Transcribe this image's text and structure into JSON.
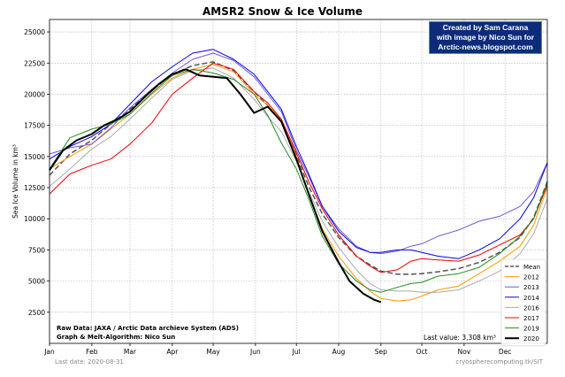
{
  "chart_data": {
    "type": "line",
    "title": "AMSR2 Snow & Ice Volume",
    "ylabel": "Sea Ice Volume in km³",
    "xlabel": "",
    "ylim": [
      0,
      26000
    ],
    "xlim": [
      0,
      365
    ],
    "y_ticks": [
      2500,
      5000,
      7500,
      10000,
      12500,
      15000,
      17500,
      20000,
      22500,
      25000
    ],
    "y_tick_labels": [
      "2500",
      "5000",
      "7500",
      "10000",
      "12500",
      "15000",
      "17500",
      "20000",
      "22500",
      "25000"
    ],
    "month_labels": [
      "Jan",
      "Feb",
      "Mar",
      "Apr",
      "May",
      "Jun",
      "Jul",
      "Aug",
      "Sep",
      "Oct",
      "Nov",
      "Dec"
    ],
    "month_starts": [
      0,
      31,
      59,
      90,
      120,
      151,
      181,
      212,
      243,
      273,
      304,
      334
    ],
    "grid": true,
    "legend_position": "bottom-right",
    "series": [
      {
        "name": "Mean",
        "color": "#555555",
        "dash": true,
        "width": 1.5,
        "x": [
          0,
          15,
          31,
          45,
          59,
          75,
          90,
          105,
          120,
          135,
          150,
          160,
          170,
          181,
          190,
          200,
          212,
          225,
          235,
          243,
          255,
          265,
          273,
          285,
          300,
          315,
          330,
          345,
          355,
          365
        ],
        "y": [
          13500,
          15200,
          16300,
          17600,
          18800,
          20300,
          21600,
          22300,
          22600,
          21900,
          20200,
          19100,
          17900,
          15100,
          12600,
          10400,
          8500,
          7000,
          6300,
          5800,
          5550,
          5550,
          5600,
          5750,
          6000,
          6500,
          7300,
          8500,
          10100,
          13000
        ]
      },
      {
        "name": "2012",
        "color": "#ff9900",
        "dash": false,
        "width": 1,
        "x": [
          0,
          15,
          31,
          45,
          59,
          75,
          90,
          105,
          120,
          135,
          150,
          160,
          170,
          181,
          190,
          200,
          212,
          225,
          235,
          243,
          255,
          265,
          273,
          285,
          300,
          315,
          330,
          345,
          355,
          365
        ],
        "y": [
          14000,
          15000,
          16000,
          17200,
          18400,
          20000,
          21300,
          22000,
          22400,
          21800,
          20000,
          19100,
          18000,
          15000,
          12000,
          9200,
          7000,
          5200,
          4200,
          3600,
          3400,
          3500,
          3800,
          4300,
          4600,
          5600,
          6600,
          7800,
          9500,
          12500
        ]
      },
      {
        "name": "2013",
        "color": "#7755cc",
        "dash": false,
        "width": 1,
        "x": [
          0,
          15,
          31,
          45,
          59,
          75,
          90,
          105,
          120,
          135,
          150,
          160,
          170,
          181,
          190,
          200,
          212,
          225,
          235,
          243,
          255,
          265,
          273,
          285,
          300,
          315,
          330,
          345,
          355,
          365
        ],
        "y": [
          15200,
          15700,
          16000,
          17300,
          18900,
          20400,
          21700,
          22800,
          23300,
          22700,
          21400,
          20000,
          18600,
          15500,
          13400,
          11000,
          9200,
          7800,
          7300,
          7200,
          7400,
          7800,
          8000,
          8600,
          9100,
          9800,
          10200,
          11000,
          12200,
          14500
        ]
      },
      {
        "name": "2014",
        "color": "#0000ee",
        "dash": false,
        "width": 1,
        "x": [
          0,
          15,
          31,
          45,
          59,
          75,
          90,
          105,
          120,
          135,
          150,
          160,
          170,
          181,
          190,
          200,
          212,
          225,
          235,
          243,
          255,
          265,
          273,
          285,
          300,
          315,
          330,
          345,
          355,
          365
        ],
        "y": [
          14800,
          15800,
          16600,
          17600,
          19200,
          21000,
          22200,
          23300,
          23600,
          22800,
          21600,
          20200,
          18800,
          15800,
          13600,
          11000,
          9000,
          7700,
          7300,
          7300,
          7500,
          7500,
          7300,
          7000,
          6800,
          7500,
          8400,
          10000,
          11700,
          14500
        ]
      },
      {
        "name": "2016",
        "color": "#aaaaaa",
        "dash": false,
        "width": 1,
        "x": [
          0,
          15,
          31,
          45,
          59,
          75,
          90,
          105,
          120,
          135,
          150,
          160,
          170,
          181,
          190,
          200,
          212,
          225,
          235,
          243,
          255,
          265,
          273,
          285,
          300,
          315,
          330,
          345,
          355,
          365
        ],
        "y": [
          12600,
          14000,
          15600,
          16600,
          18000,
          19700,
          21200,
          21900,
          22100,
          21300,
          19600,
          18200,
          17000,
          14600,
          12200,
          9800,
          7700,
          5900,
          4800,
          4300,
          4200,
          4200,
          4100,
          4100,
          4300,
          5000,
          5800,
          7200,
          8800,
          11600
        ]
      },
      {
        "name": "2017",
        "color": "#ee0000",
        "dash": false,
        "width": 1,
        "x": [
          0,
          15,
          31,
          45,
          59,
          75,
          90,
          105,
          120,
          135,
          150,
          160,
          170,
          181,
          190,
          200,
          212,
          225,
          235,
          243,
          255,
          265,
          273,
          285,
          300,
          315,
          330,
          345,
          355,
          365
        ],
        "y": [
          12000,
          13600,
          14300,
          14800,
          16000,
          17700,
          20000,
          21300,
          22500,
          22000,
          20200,
          19300,
          18000,
          15300,
          13000,
          10800,
          8700,
          7000,
          6200,
          5700,
          5900,
          6600,
          6800,
          6700,
          6600,
          7100,
          7900,
          8700,
          10000,
          12700
        ]
      },
      {
        "name": "2019",
        "color": "#228b22",
        "dash": false,
        "width": 1,
        "x": [
          0,
          15,
          31,
          45,
          59,
          75,
          90,
          105,
          120,
          135,
          150,
          160,
          170,
          181,
          190,
          200,
          212,
          225,
          235,
          243,
          255,
          265,
          273,
          285,
          300,
          315,
          330,
          345,
          355,
          365
        ],
        "y": [
          14000,
          16500,
          17200,
          17600,
          18400,
          20100,
          21500,
          22000,
          21700,
          21200,
          20000,
          18300,
          16100,
          14000,
          11600,
          8600,
          6400,
          5000,
          4300,
          4100,
          4500,
          4800,
          4900,
          5400,
          5600,
          6100,
          7200,
          8600,
          10000,
          12900
        ]
      },
      {
        "name": "2020",
        "color": "#000000",
        "dash": false,
        "width": 2,
        "x": [
          0,
          10,
          20,
          31,
          40,
          50,
          59,
          70,
          80,
          90,
          100,
          110,
          120,
          130,
          140,
          150,
          160,
          170,
          181,
          190,
          200,
          212,
          220,
          230,
          238,
          243
        ],
        "y": [
          13900,
          15500,
          16300,
          16800,
          17500,
          18000,
          18600,
          19800,
          20800,
          21600,
          22000,
          21500,
          21400,
          21300,
          20000,
          18500,
          19000,
          17800,
          14800,
          12000,
          9000,
          6500,
          5000,
          4000,
          3500,
          3308
        ]
      }
    ],
    "annotations": {
      "raw_data": "Raw Data: JAXA / Arctic Data archieve System (ADS)",
      "algorithm": "Graph & Melt-Algorithm: Nico Sun",
      "last_value": "Last value: 3,308 km³",
      "last_date": "Last date: 2020-08-31",
      "source": "cryospherecomputing.tk/SIT"
    }
  },
  "credit_box": {
    "line1": "Created by Sam Carana",
    "line2": "with image by Nico Sun for",
    "line3": "Arctic-news.blogspot.com"
  }
}
